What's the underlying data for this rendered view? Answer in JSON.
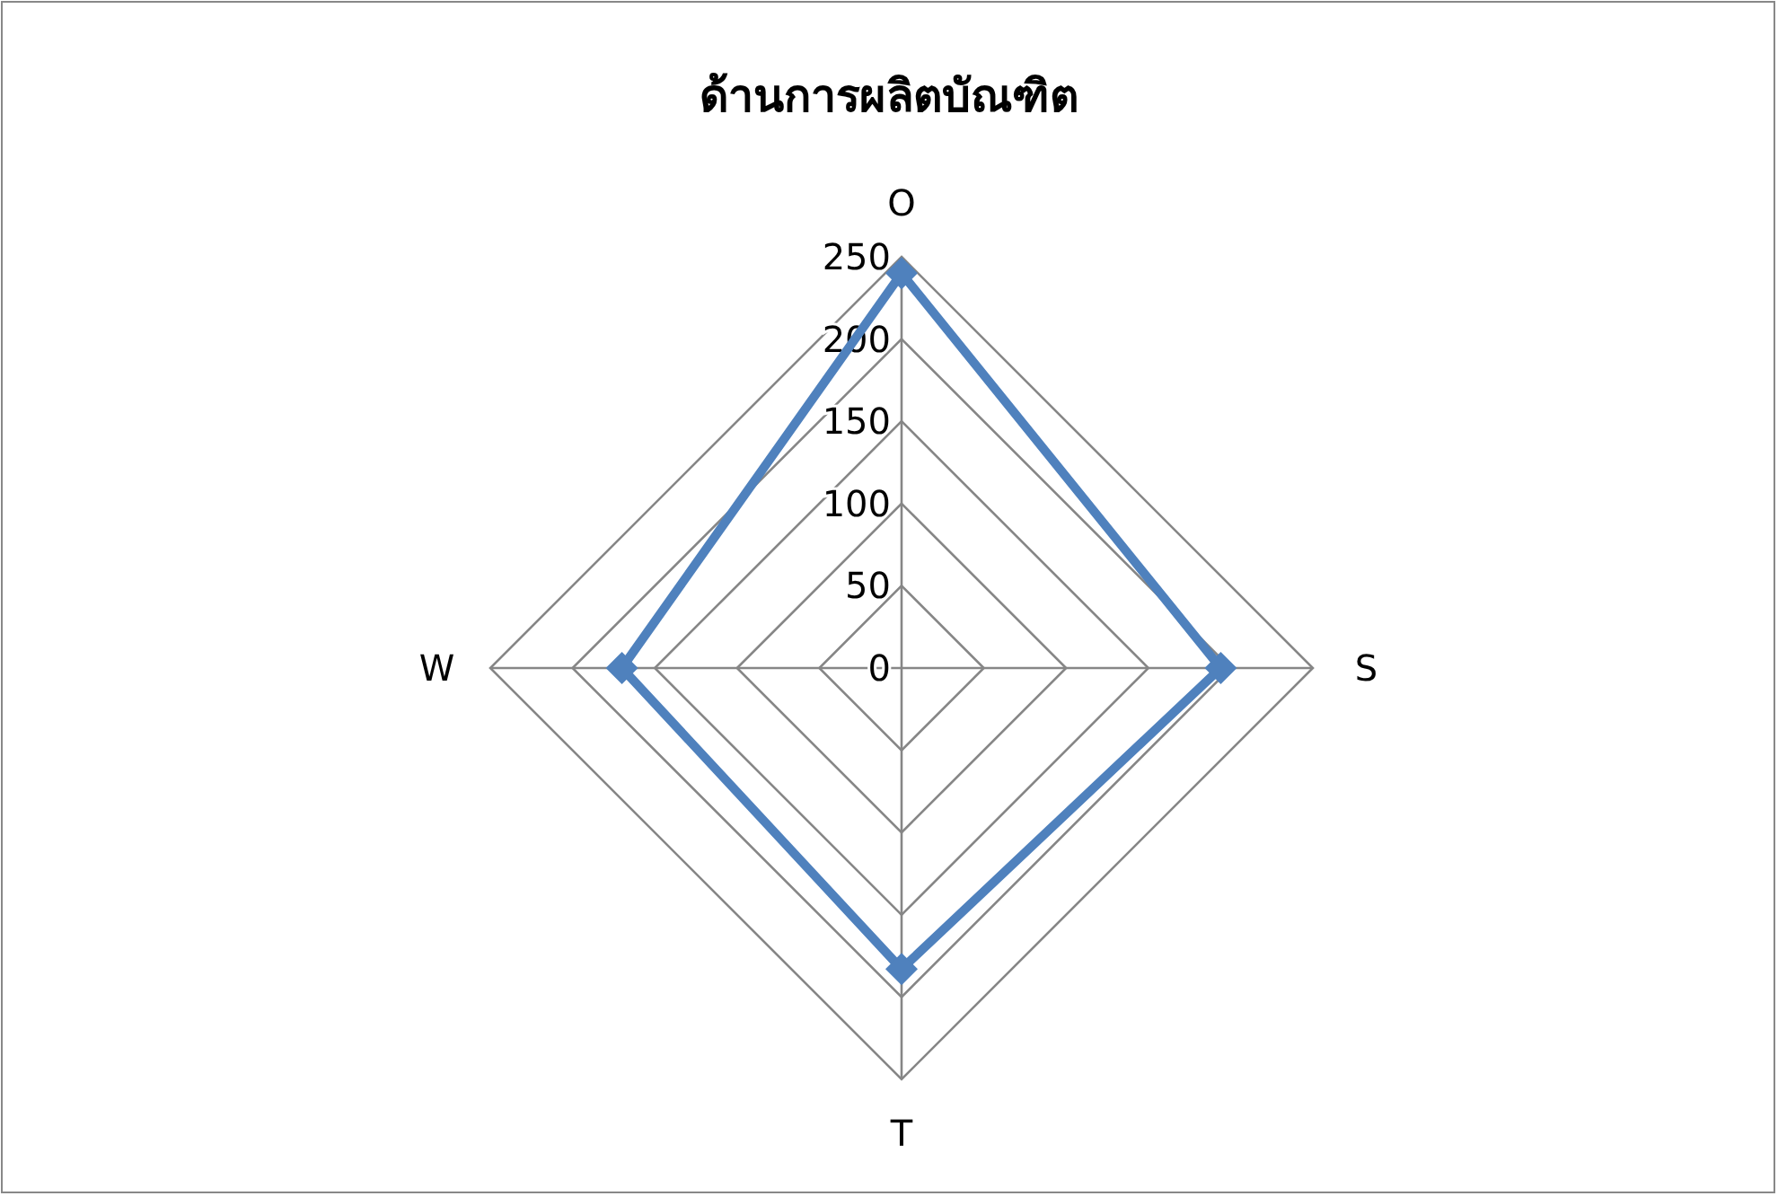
{
  "chart_data": {
    "type": "radar",
    "title": "ด้านการผลิตบัณฑิต",
    "categories": [
      "O",
      "S",
      "T",
      "W"
    ],
    "series": [
      {
        "color": "#4f81bd",
        "values": [
          240,
          194,
          183,
          170
        ]
      }
    ],
    "ylim": [
      0,
      250
    ],
    "yticks": [
      0,
      50,
      100,
      150,
      200,
      250
    ],
    "grid": true,
    "marker": "diamond",
    "line_style": "solid"
  }
}
